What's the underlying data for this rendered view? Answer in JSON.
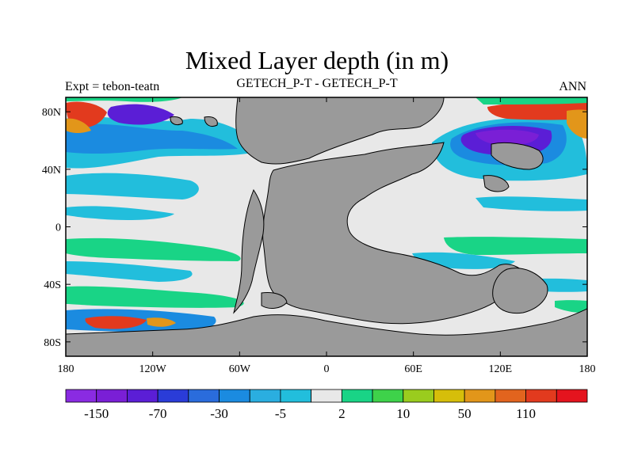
{
  "title": "Mixed Layer depth (in m)",
  "subtitle_left": "Expt = tebon-teatn",
  "subtitle_center": "GETECH_P-T - GETECH_P-T",
  "subtitle_right": "ANN",
  "lon_ticks": [
    "180",
    "120W",
    "60W",
    "0",
    "60E",
    "120E",
    "180"
  ],
  "lat_ticks": [
    "80N",
    "40N",
    "0",
    "40S",
    "80S"
  ],
  "colorbar": {
    "colors": [
      "#8a2be2",
      "#7a1fd6",
      "#5b1ed6",
      "#2a3cd8",
      "#2a6cdc",
      "#1b8be0",
      "#2aaee0",
      "#22bedc",
      "#e8e8e8",
      "#19d486",
      "#3ed24a",
      "#9acc1e",
      "#d6be0a",
      "#e2961a",
      "#e2641e",
      "#e23a1e",
      "#e4141e"
    ],
    "labels": [
      "-150",
      "-70",
      "-30",
      "-5",
      "2",
      "10",
      "50",
      "110"
    ]
  },
  "colors": {
    "land": "#9a9a9a",
    "ocean_neutral": "#e8e8e8",
    "coastline": "#000000"
  }
}
